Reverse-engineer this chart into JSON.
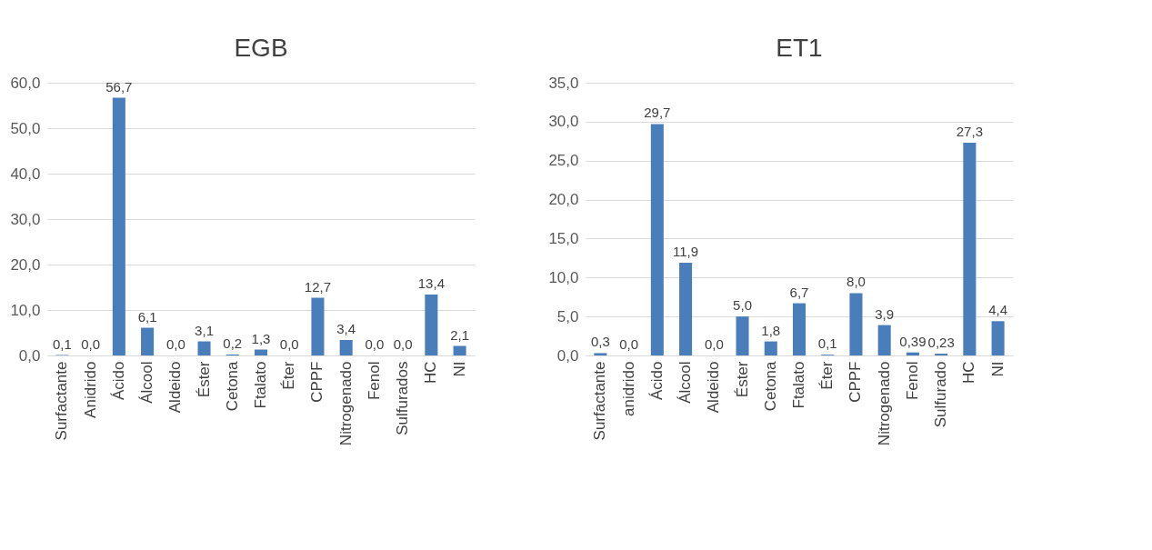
{
  "chart_data": [
    {
      "type": "bar",
      "title": "EGB",
      "categories": [
        "Surfactante",
        "Anidrido",
        "Ácido",
        "Álcool",
        "Aldeido",
        "Éster",
        "Cetona",
        "Ftalato",
        "Éter",
        "CPPF",
        "Nitrogenado",
        "Fenol",
        "Sulfurados",
        "HC",
        "NI"
      ],
      "values": [
        0.1,
        0.0,
        56.7,
        6.1,
        0.0,
        3.1,
        0.2,
        1.3,
        0.0,
        12.7,
        3.4,
        0.0,
        0.0,
        13.4,
        2.1
      ],
      "value_labels": [
        "0,1",
        "0,0",
        "56,7",
        "6,1",
        "0,0",
        "3,1",
        "0,2",
        "1,3",
        "0,0",
        "12,7",
        "3,4",
        "0,0",
        "0,0",
        "13,4",
        "2,1"
      ],
      "color": "#4a7ebb",
      "ylim": [
        0,
        60
      ],
      "yticks": [
        {
          "value": 0,
          "label": "0,0"
        },
        {
          "value": 10,
          "label": "10,0"
        },
        {
          "value": 20,
          "label": "20,0"
        },
        {
          "value": 30,
          "label": "30,0"
        },
        {
          "value": 40,
          "label": "40,0"
        },
        {
          "value": 50,
          "label": "50,0"
        },
        {
          "value": 60,
          "label": "60,0"
        }
      ],
      "grid": "y"
    },
    {
      "type": "bar",
      "title": "ET1",
      "categories": [
        "Surfactante",
        "anidrido",
        "Ácido",
        "Álcool",
        "Aldeido",
        "Éster",
        "Cetona",
        "Ftalato",
        "Éter",
        "CPPF",
        "Nitrogenado",
        "Fenol",
        "Sulfurado",
        "HC",
        "NI"
      ],
      "values": [
        0.3,
        0.0,
        29.7,
        11.9,
        0.0,
        5.0,
        1.8,
        6.7,
        0.1,
        8.0,
        3.9,
        0.39,
        0.23,
        27.3,
        4.4
      ],
      "value_labels": [
        "0,3",
        "0,0",
        "29,7",
        "11,9",
        "0,0",
        "5,0",
        "1,8",
        "6,7",
        "0,1",
        "8,0",
        "3,9",
        "0,39",
        "0,23",
        "27,3",
        "4,4"
      ],
      "color": "#4a7ebb",
      "ylim": [
        0,
        35
      ],
      "yticks": [
        {
          "value": 0,
          "label": "0,0"
        },
        {
          "value": 5,
          "label": "5,0"
        },
        {
          "value": 10,
          "label": "10,0"
        },
        {
          "value": 15,
          "label": "15,0"
        },
        {
          "value": 20,
          "label": "20,0"
        },
        {
          "value": 25,
          "label": "25,0"
        },
        {
          "value": 30,
          "label": "30,0"
        },
        {
          "value": 35,
          "label": "35,0"
        }
      ],
      "grid": "y"
    }
  ]
}
